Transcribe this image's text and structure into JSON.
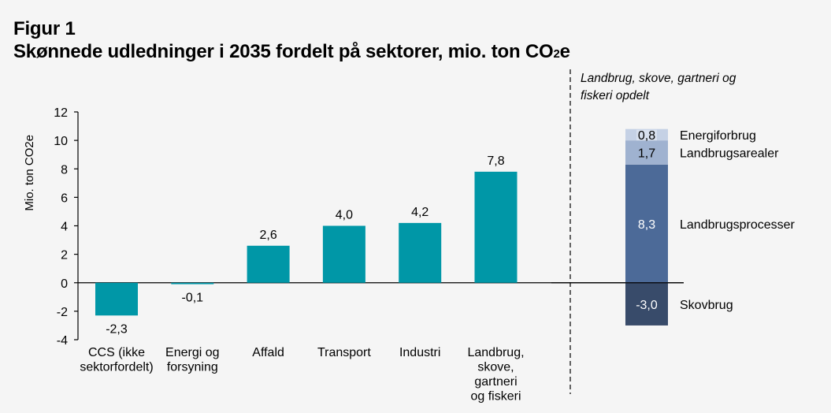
{
  "header": {
    "figure_label": "Figur 1",
    "subtitle_main": "Skønnede udledninger i 2035 fordelt på sektorer, mio. ton CO",
    "subtitle_sub": "2",
    "subtitle_tail": "e"
  },
  "chart_data": [
    {
      "type": "bar",
      "title": "Skønnede udledninger i 2035 fordelt på sektorer, mio. ton CO2e",
      "xlabel": "",
      "ylabel": "Mio. ton CO2e",
      "ylim": [
        -4,
        12
      ],
      "yticks": [
        -4,
        -2,
        0,
        2,
        4,
        6,
        8,
        10,
        12
      ],
      "ytick_labels": [
        "-4",
        "-2",
        "0",
        "2",
        "4",
        "6",
        "8",
        "10",
        "12"
      ],
      "grid": false,
      "color": "#0097a7",
      "categories": [
        [
          "CCS (ikke",
          "sektorfordelt)"
        ],
        [
          "Energi og",
          "forsyning"
        ],
        [
          "Affald"
        ],
        [
          "Transport"
        ],
        [
          "Industri"
        ],
        [
          "Landbrug,",
          "skove,",
          "gartneri",
          "og fiskeri"
        ]
      ],
      "values": [
        -2.3,
        -0.1,
        2.6,
        4.0,
        4.2,
        7.8
      ],
      "value_labels": [
        "-2,3",
        "-0,1",
        "2,6",
        "4,0",
        "4,2",
        "7,8"
      ]
    },
    {
      "type": "bar",
      "stacked": true,
      "title": "Landbrug, skove, gartneri og fiskeri opdelt",
      "title_lines": [
        "Landbrug, skove, gartneri og",
        "fiskeri opdelt"
      ],
      "series": [
        {
          "name": "Skovbrug",
          "value": -3.0,
          "label": "-3,0",
          "color": "#384b6a",
          "label_color": "#ffffff"
        },
        {
          "name": "Landbrugsprocesser",
          "value": 8.3,
          "label": "8,3",
          "color": "#4c6a98",
          "label_color": "#ffffff"
        },
        {
          "name": "Landbrugsarealer",
          "value": 1.7,
          "label": "1,7",
          "color": "#9fb2d0",
          "label_color": "#000000"
        },
        {
          "name": "Energiforbrug",
          "value": 0.8,
          "label": "0,8",
          "color": "#c5d1e5",
          "label_color": "#000000"
        }
      ],
      "legend_placement": "right"
    }
  ]
}
